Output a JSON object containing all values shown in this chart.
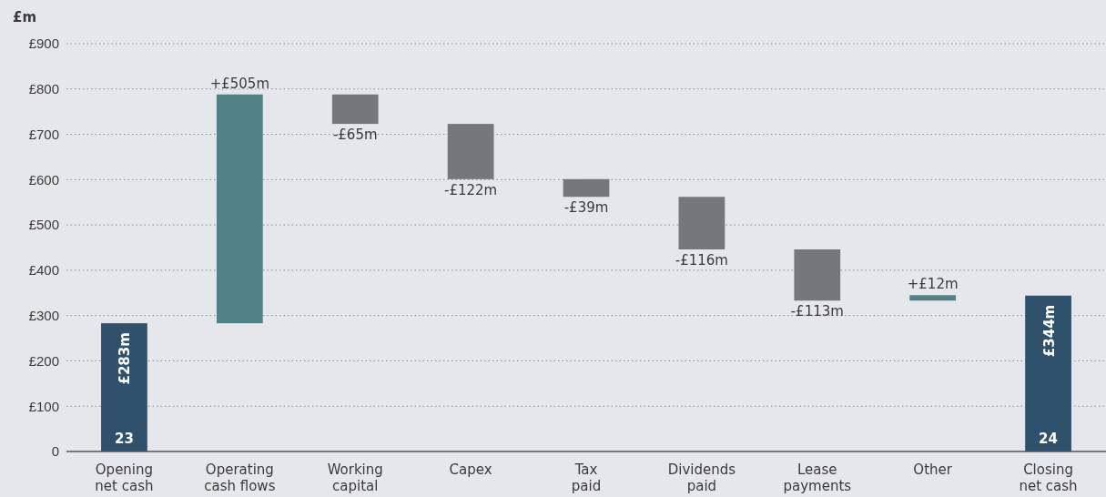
{
  "chart_data": {
    "type": "bar",
    "ylabel": "£m",
    "categories": [
      "Opening\nnet cash",
      "Operating\ncash flows",
      "Working\ncapital",
      "Capex",
      "Tax\npaid",
      "Dividends\npaid",
      "Lease\npayments",
      "Other",
      "Closing\nnet cash"
    ],
    "values": [
      283,
      505,
      -65,
      -122,
      -39,
      -116,
      -113,
      12,
      344
    ],
    "base": [
      0,
      283,
      788,
      723,
      601,
      562,
      446,
      333,
      0
    ],
    "colors": [
      "#2f516b",
      "#528185",
      "#76777b",
      "#76777b",
      "#76777b",
      "#76777b",
      "#76777b",
      "#528185",
      "#2f516b"
    ],
    "value_labels": [
      "£283m",
      "+£505m",
      "-£65m",
      "-£122m",
      "-£39m",
      "-£116m",
      "-£113m",
      "+£12m",
      "£344m"
    ],
    "annotations": [
      {
        "text": "23",
        "x": "Opening\nnet cash",
        "y": 0
      },
      {
        "text": "24",
        "x": "Closing\nnet cash",
        "y": 0
      }
    ],
    "ylim": [
      0,
      900
    ],
    "yticks": [
      {
        "value": 0,
        "label": "0"
      },
      {
        "value": 100,
        "label": "£100"
      },
      {
        "value": 200,
        "label": "£200"
      },
      {
        "value": 300,
        "label": "£300"
      },
      {
        "value": 400,
        "label": "£400"
      },
      {
        "value": 500,
        "label": "£500"
      },
      {
        "value": 600,
        "label": "£600"
      },
      {
        "value": 700,
        "label": "£700"
      },
      {
        "value": 800,
        "label": "£800"
      },
      {
        "value": 900,
        "label": "£900"
      }
    ],
    "grid": "y"
  }
}
